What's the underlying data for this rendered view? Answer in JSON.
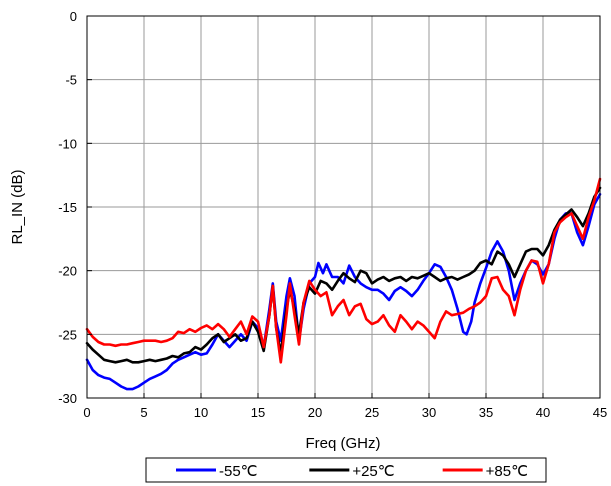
{
  "chart_data": {
    "type": "line",
    "title": "",
    "xlabel": "Freq (GHz)",
    "ylabel": "RL_IN (dB)",
    "xlim": [
      0,
      45
    ],
    "ylim": [
      -30,
      0
    ],
    "xticks": [
      0,
      5,
      10,
      15,
      20,
      25,
      30,
      35,
      40,
      45
    ],
    "yticks": [
      0,
      -5,
      -10,
      -15,
      -20,
      -25,
      -30
    ],
    "grid": true,
    "legend_position": "bottom",
    "series": [
      {
        "name": "-55℃",
        "color": "#0000ff",
        "points": [
          [
            0,
            -27.0
          ],
          [
            0.5,
            -27.8
          ],
          [
            1,
            -28.2
          ],
          [
            1.5,
            -28.4
          ],
          [
            2,
            -28.5
          ],
          [
            2.5,
            -28.8
          ],
          [
            3,
            -29.1
          ],
          [
            3.5,
            -29.3
          ],
          [
            4,
            -29.3
          ],
          [
            4.5,
            -29.1
          ],
          [
            5,
            -28.8
          ],
          [
            5.5,
            -28.5
          ],
          [
            6,
            -28.3
          ],
          [
            6.5,
            -28.1
          ],
          [
            7,
            -27.8
          ],
          [
            7.5,
            -27.3
          ],
          [
            8,
            -27.0
          ],
          [
            8.5,
            -26.8
          ],
          [
            9,
            -26.6
          ],
          [
            9.5,
            -26.4
          ],
          [
            10,
            -26.6
          ],
          [
            10.5,
            -26.5
          ],
          [
            11,
            -25.8
          ],
          [
            11.5,
            -25.0
          ],
          [
            12,
            -25.5
          ],
          [
            12.5,
            -26.0
          ],
          [
            13,
            -25.5
          ],
          [
            13.5,
            -25.0
          ],
          [
            14,
            -25.5
          ],
          [
            14.5,
            -24.0
          ],
          [
            15,
            -24.5
          ],
          [
            15.5,
            -26.0
          ],
          [
            16,
            -23.0
          ],
          [
            16.3,
            -21.0
          ],
          [
            16.6,
            -24.0
          ],
          [
            17,
            -25.5
          ],
          [
            17.5,
            -22.0
          ],
          [
            17.8,
            -20.6
          ],
          [
            18.2,
            -22.0
          ],
          [
            18.6,
            -25.5
          ],
          [
            19,
            -23.0
          ],
          [
            19.5,
            -21.0
          ],
          [
            20,
            -20.5
          ],
          [
            20.3,
            -19.4
          ],
          [
            20.7,
            -20.2
          ],
          [
            21,
            -19.5
          ],
          [
            21.5,
            -20.5
          ],
          [
            22,
            -20.5
          ],
          [
            22.5,
            -21.0
          ],
          [
            23,
            -19.6
          ],
          [
            23.5,
            -20.5
          ],
          [
            24,
            -21.0
          ],
          [
            24.5,
            -21.3
          ],
          [
            25,
            -21.5
          ],
          [
            25.5,
            -21.5
          ],
          [
            26,
            -21.8
          ],
          [
            26.5,
            -22.3
          ],
          [
            27,
            -21.6
          ],
          [
            27.5,
            -21.3
          ],
          [
            28,
            -21.6
          ],
          [
            28.5,
            -22.0
          ],
          [
            29,
            -21.5
          ],
          [
            29.5,
            -20.8
          ],
          [
            30,
            -20.2
          ],
          [
            30.5,
            -19.5
          ],
          [
            31,
            -19.7
          ],
          [
            31.5,
            -20.5
          ],
          [
            32,
            -21.5
          ],
          [
            32.5,
            -23.0
          ],
          [
            33,
            -24.8
          ],
          [
            33.3,
            -25.0
          ],
          [
            33.7,
            -24.0
          ],
          [
            34,
            -22.5
          ],
          [
            34.5,
            -21.0
          ],
          [
            35,
            -19.8
          ],
          [
            35.5,
            -18.5
          ],
          [
            36,
            -17.7
          ],
          [
            36.5,
            -18.5
          ],
          [
            37,
            -20.0
          ],
          [
            37.5,
            -22.3
          ],
          [
            38,
            -21.0
          ],
          [
            38.5,
            -20.0
          ],
          [
            39,
            -19.2
          ],
          [
            39.5,
            -19.5
          ],
          [
            40,
            -20.3
          ],
          [
            40.5,
            -19.5
          ],
          [
            41,
            -17.5
          ],
          [
            41.5,
            -16.0
          ],
          [
            42,
            -15.5
          ],
          [
            42.5,
            -15.5
          ],
          [
            43,
            -17.0
          ],
          [
            43.5,
            -18.0
          ],
          [
            44,
            -16.5
          ],
          [
            44.5,
            -14.8
          ],
          [
            45,
            -14.0
          ]
        ]
      },
      {
        "name": "+25℃",
        "color": "#000000",
        "points": [
          [
            0,
            -25.7
          ],
          [
            0.5,
            -26.2
          ],
          [
            1,
            -26.6
          ],
          [
            1.5,
            -27.0
          ],
          [
            2,
            -27.1
          ],
          [
            2.5,
            -27.2
          ],
          [
            3,
            -27.1
          ],
          [
            3.5,
            -27.0
          ],
          [
            4,
            -27.2
          ],
          [
            4.5,
            -27.2
          ],
          [
            5,
            -27.1
          ],
          [
            5.5,
            -27.0
          ],
          [
            6,
            -27.1
          ],
          [
            6.5,
            -27.0
          ],
          [
            7,
            -26.9
          ],
          [
            7.5,
            -26.7
          ],
          [
            8,
            -26.8
          ],
          [
            8.5,
            -26.5
          ],
          [
            9,
            -26.4
          ],
          [
            9.5,
            -26.0
          ],
          [
            10,
            -26.2
          ],
          [
            10.5,
            -25.8
          ],
          [
            11,
            -25.3
          ],
          [
            11.5,
            -25.0
          ],
          [
            12,
            -25.6
          ],
          [
            12.5,
            -25.3
          ],
          [
            13,
            -25.0
          ],
          [
            13.5,
            -25.5
          ],
          [
            14,
            -25.3
          ],
          [
            14.5,
            -24.0
          ],
          [
            15,
            -24.8
          ],
          [
            15.5,
            -26.3
          ],
          [
            16,
            -23.5
          ],
          [
            16.3,
            -21.2
          ],
          [
            16.6,
            -24.5
          ],
          [
            17,
            -26.5
          ],
          [
            17.5,
            -23.0
          ],
          [
            17.8,
            -21.5
          ],
          [
            18.2,
            -23.0
          ],
          [
            18.6,
            -25.0
          ],
          [
            19,
            -22.5
          ],
          [
            19.5,
            -21.3
          ],
          [
            20,
            -21.8
          ],
          [
            20.5,
            -20.8
          ],
          [
            21,
            -21.0
          ],
          [
            21.5,
            -21.5
          ],
          [
            22,
            -20.8
          ],
          [
            22.5,
            -20.2
          ],
          [
            23,
            -20.6
          ],
          [
            23.5,
            -20.9
          ],
          [
            24,
            -20.0
          ],
          [
            24.5,
            -20.2
          ],
          [
            25,
            -21.0
          ],
          [
            25.5,
            -20.7
          ],
          [
            26,
            -20.5
          ],
          [
            26.5,
            -20.8
          ],
          [
            27,
            -20.6
          ],
          [
            27.5,
            -20.5
          ],
          [
            28,
            -20.8
          ],
          [
            28.5,
            -20.5
          ],
          [
            29,
            -20.6
          ],
          [
            29.5,
            -20.4
          ],
          [
            30,
            -20.2
          ],
          [
            30.5,
            -20.5
          ],
          [
            31,
            -20.8
          ],
          [
            31.5,
            -20.6
          ],
          [
            32,
            -20.5
          ],
          [
            32.5,
            -20.7
          ],
          [
            33,
            -20.5
          ],
          [
            33.5,
            -20.3
          ],
          [
            34,
            -20.0
          ],
          [
            34.5,
            -19.4
          ],
          [
            35,
            -19.2
          ],
          [
            35.5,
            -19.5
          ],
          [
            36,
            -18.5
          ],
          [
            36.5,
            -18.8
          ],
          [
            37,
            -19.5
          ],
          [
            37.5,
            -20.5
          ],
          [
            38,
            -19.5
          ],
          [
            38.5,
            -18.5
          ],
          [
            39,
            -18.3
          ],
          [
            39.5,
            -18.3
          ],
          [
            40,
            -18.8
          ],
          [
            40.5,
            -18.0
          ],
          [
            41,
            -16.8
          ],
          [
            41.5,
            -16.0
          ],
          [
            42,
            -15.6
          ],
          [
            42.5,
            -15.2
          ],
          [
            43,
            -15.8
          ],
          [
            43.5,
            -16.5
          ],
          [
            44,
            -15.5
          ],
          [
            44.5,
            -14.2
          ],
          [
            45,
            -13.5
          ]
        ]
      },
      {
        "name": "+85℃",
        "color": "#ff0000",
        "points": [
          [
            0,
            -24.6
          ],
          [
            0.5,
            -25.2
          ],
          [
            1,
            -25.6
          ],
          [
            1.5,
            -25.8
          ],
          [
            2,
            -25.8
          ],
          [
            2.5,
            -25.9
          ],
          [
            3,
            -25.8
          ],
          [
            3.5,
            -25.8
          ],
          [
            4,
            -25.7
          ],
          [
            4.5,
            -25.6
          ],
          [
            5,
            -25.5
          ],
          [
            5.5,
            -25.5
          ],
          [
            6,
            -25.5
          ],
          [
            6.5,
            -25.6
          ],
          [
            7,
            -25.5
          ],
          [
            7.5,
            -25.3
          ],
          [
            8,
            -24.8
          ],
          [
            8.5,
            -24.9
          ],
          [
            9,
            -24.6
          ],
          [
            9.5,
            -24.8
          ],
          [
            10,
            -24.5
          ],
          [
            10.5,
            -24.3
          ],
          [
            11,
            -24.6
          ],
          [
            11.5,
            -24.2
          ],
          [
            12,
            -24.6
          ],
          [
            12.5,
            -25.2
          ],
          [
            13,
            -24.6
          ],
          [
            13.5,
            -24.0
          ],
          [
            14,
            -25.0
          ],
          [
            14.5,
            -23.6
          ],
          [
            15,
            -24.0
          ],
          [
            15.5,
            -26.0
          ],
          [
            16,
            -23.5
          ],
          [
            16.3,
            -21.2
          ],
          [
            16.6,
            -24.5
          ],
          [
            17,
            -27.2
          ],
          [
            17.5,
            -23.5
          ],
          [
            17.8,
            -21.0
          ],
          [
            18.2,
            -23.5
          ],
          [
            18.6,
            -25.8
          ],
          [
            19,
            -22.5
          ],
          [
            19.5,
            -20.8
          ],
          [
            20,
            -21.5
          ],
          [
            20.5,
            -22.0
          ],
          [
            21,
            -21.7
          ],
          [
            21.5,
            -23.5
          ],
          [
            22,
            -22.8
          ],
          [
            22.5,
            -22.3
          ],
          [
            23,
            -23.5
          ],
          [
            23.5,
            -22.8
          ],
          [
            24,
            -22.6
          ],
          [
            24.5,
            -23.8
          ],
          [
            25,
            -24.2
          ],
          [
            25.5,
            -24.0
          ],
          [
            26,
            -23.5
          ],
          [
            26.5,
            -24.3
          ],
          [
            27,
            -24.8
          ],
          [
            27.5,
            -23.5
          ],
          [
            28,
            -24.0
          ],
          [
            28.5,
            -24.6
          ],
          [
            29,
            -24.0
          ],
          [
            29.5,
            -24.3
          ],
          [
            30,
            -24.8
          ],
          [
            30.5,
            -25.3
          ],
          [
            31,
            -24.0
          ],
          [
            31.5,
            -23.2
          ],
          [
            32,
            -23.5
          ],
          [
            32.5,
            -23.4
          ],
          [
            33,
            -23.3
          ],
          [
            33.5,
            -23.0
          ],
          [
            34,
            -22.8
          ],
          [
            34.5,
            -22.5
          ],
          [
            35,
            -22.0
          ],
          [
            35.5,
            -20.6
          ],
          [
            36,
            -20.5
          ],
          [
            36.5,
            -21.5
          ],
          [
            37,
            -22.0
          ],
          [
            37.5,
            -23.5
          ],
          [
            38,
            -21.5
          ],
          [
            38.5,
            -20.0
          ],
          [
            39,
            -19.2
          ],
          [
            39.5,
            -19.3
          ],
          [
            40,
            -21.0
          ],
          [
            40.5,
            -19.5
          ],
          [
            41,
            -17.0
          ],
          [
            41.5,
            -16.2
          ],
          [
            42,
            -15.8
          ],
          [
            42.5,
            -15.5
          ],
          [
            43,
            -16.5
          ],
          [
            43.5,
            -17.5
          ],
          [
            44,
            -15.8
          ],
          [
            44.5,
            -14.5
          ],
          [
            45,
            -12.8
          ]
        ]
      }
    ]
  }
}
